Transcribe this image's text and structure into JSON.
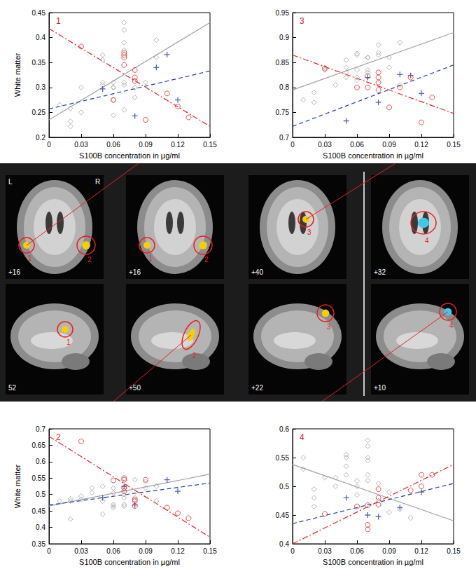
{
  "chart_data": [
    {
      "type": "scatter",
      "title": "1",
      "ylabel": "White matter",
      "xlabel": "S100B concentration in µg/ml",
      "xlim": [
        0,
        0.15
      ],
      "xticks": [
        0,
        0.03,
        0.06,
        0.09,
        0.12,
        0.15
      ],
      "ylim": [
        0.2,
        0.45
      ],
      "yticks": [
        0.2,
        0.25,
        0.3,
        0.35,
        0.4,
        0.45
      ],
      "series": [
        {
          "color": "#a0a0a0",
          "marker": "diamond",
          "line_style": "solid",
          "x": [
            0.01,
            0.02,
            0.02,
            0.02,
            0.03,
            0.03,
            0.05,
            0.05,
            0.05,
            0.05,
            0.06,
            0.06,
            0.06,
            0.06,
            0.06,
            0.07,
            0.07,
            0.07,
            0.07,
            0.07,
            0.07,
            0.07,
            0.08,
            0.08,
            0.09,
            0.1,
            0.1
          ],
          "values": [
            0.265,
            0.222,
            0.232,
            0.258,
            0.3,
            0.25,
            0.31,
            0.305,
            0.355,
            0.365,
            0.3,
            0.31,
            0.3,
            0.275,
            0.244,
            0.43,
            0.415,
            0.39,
            0.375,
            0.31,
            0.305,
            0.255,
            0.3,
            0.28,
            0.31,
            0.36,
            0.395
          ],
          "line_x": [
            0,
            0.15
          ],
          "line_values": [
            0.235,
            0.43
          ]
        },
        {
          "color": "#1f3ca8",
          "marker": "plus",
          "line_style": "dashed",
          "x": [
            0.05,
            0.08,
            0.1,
            0.11,
            0.12
          ],
          "values": [
            0.297,
            0.243,
            0.34,
            0.366,
            0.275
          ],
          "line_x": [
            0,
            0.15
          ],
          "line_values": [
            0.257,
            0.333
          ]
        },
        {
          "color": "#e8201f",
          "marker": "circle",
          "line_style": "dashdot",
          "x": [
            0.03,
            0.06,
            0.07,
            0.07,
            0.07,
            0.07,
            0.08,
            0.08,
            0.08,
            0.09,
            0.11,
            0.12,
            0.13
          ],
          "values": [
            0.382,
            0.275,
            0.37,
            0.365,
            0.36,
            0.345,
            0.335,
            0.32,
            0.313,
            0.235,
            0.288,
            0.262,
            0.24
          ],
          "line_x": [
            0,
            0.15
          ],
          "line_values": [
            0.418,
            0.222
          ]
        }
      ]
    },
    {
      "type": "scatter",
      "title": "3",
      "xlabel": "S100B concentration in µg/ml",
      "xlim": [
        0,
        0.15
      ],
      "xticks": [
        0,
        0.03,
        0.06,
        0.09,
        0.12,
        0.15
      ],
      "ylim": [
        0.7,
        0.95
      ],
      "yticks": [
        0.7,
        0.75,
        0.8,
        0.85,
        0.9,
        0.95
      ],
      "series": [
        {
          "color": "#a0a0a0",
          "marker": "diamond",
          "line_style": "solid",
          "x": [
            0.01,
            0.02,
            0.02,
            0.03,
            0.03,
            0.04,
            0.05,
            0.05,
            0.05,
            0.05,
            0.06,
            0.06,
            0.06,
            0.06,
            0.06,
            0.07,
            0.07,
            0.07,
            0.07,
            0.08,
            0.08,
            0.08,
            0.09,
            0.09,
            0.1,
            0.1
          ],
          "values": [
            0.775,
            0.79,
            0.77,
            0.84,
            0.835,
            0.805,
            0.84,
            0.83,
            0.82,
            0.855,
            0.865,
            0.868,
            0.82,
            0.835,
            0.815,
            0.835,
            0.86,
            0.86,
            0.83,
            0.87,
            0.865,
            0.885,
            0.86,
            0.84,
            0.89,
            0.805
          ],
          "line_x": [
            0,
            0.15
          ],
          "line_values": [
            0.795,
            0.91
          ]
        },
        {
          "color": "#1f3ca8",
          "marker": "plus",
          "line_style": "dashed",
          "x": [
            0.05,
            0.07,
            0.08,
            0.1,
            0.11,
            0.12
          ],
          "values": [
            0.733,
            0.82,
            0.77,
            0.826,
            0.824,
            0.788
          ],
          "line_x": [
            0,
            0.15
          ],
          "line_values": [
            0.722,
            0.845
          ]
        },
        {
          "color": "#e8201f",
          "marker": "circle",
          "line_style": "dashdot",
          "x": [
            0.03,
            0.06,
            0.07,
            0.07,
            0.08,
            0.08,
            0.08,
            0.08,
            0.09,
            0.1,
            0.11,
            0.12,
            0.13
          ],
          "values": [
            0.838,
            0.8,
            0.8,
            0.823,
            0.83,
            0.82,
            0.81,
            0.795,
            0.76,
            0.8,
            0.82,
            0.73,
            0.78
          ],
          "line_x": [
            0,
            0.15
          ],
          "line_values": [
            0.865,
            0.748
          ]
        }
      ]
    },
    {
      "type": "scatter",
      "title": "2",
      "ylabel": "White matter",
      "xlabel": "S100B concentration in µg/ml",
      "xlim": [
        0,
        0.15
      ],
      "xticks": [
        0,
        0.03,
        0.06,
        0.09,
        0.12,
        0.15
      ],
      "ylim": [
        0.35,
        0.7
      ],
      "yticks": [
        0.35,
        0.4,
        0.45,
        0.5,
        0.55,
        0.6,
        0.65,
        0.7
      ],
      "series": [
        {
          "color": "#a0a0a0",
          "marker": "diamond",
          "line_style": "solid",
          "x": [
            0.01,
            0.02,
            0.02,
            0.02,
            0.03,
            0.03,
            0.04,
            0.04,
            0.05,
            0.05,
            0.05,
            0.06,
            0.06,
            0.06,
            0.06,
            0.06,
            0.07,
            0.07,
            0.07,
            0.07,
            0.07,
            0.08,
            0.08,
            0.09,
            0.09,
            0.1,
            0.1
          ],
          "values": [
            0.48,
            0.425,
            0.487,
            0.48,
            0.495,
            0.485,
            0.52,
            0.505,
            0.525,
            0.48,
            0.44,
            0.52,
            0.505,
            0.47,
            0.465,
            0.46,
            0.52,
            0.5,
            0.49,
            0.47,
            0.465,
            0.49,
            0.545,
            0.54,
            0.52,
            0.525,
            0.48
          ],
          "line_x": [
            0,
            0.15
          ],
          "line_values": [
            0.465,
            0.562
          ]
        },
        {
          "color": "#1f3ca8",
          "marker": "plus",
          "line_style": "dashed",
          "x": [
            0.05,
            0.07,
            0.08,
            0.11,
            0.12
          ],
          "values": [
            0.49,
            0.525,
            0.468,
            0.545,
            0.51
          ],
          "line_x": [
            0,
            0.15
          ],
          "line_values": [
            0.468,
            0.535
          ]
        },
        {
          "color": "#e8201f",
          "marker": "circle",
          "line_style": "dashdot",
          "x": [
            0.03,
            0.06,
            0.07,
            0.07,
            0.07,
            0.07,
            0.08,
            0.08,
            0.08,
            0.09,
            0.11,
            0.12,
            0.13
          ],
          "values": [
            0.662,
            0.543,
            0.55,
            0.545,
            0.52,
            0.51,
            0.485,
            0.48,
            0.465,
            0.545,
            0.46,
            0.443,
            0.428
          ],
          "line_x": [
            0,
            0.15
          ],
          "line_values": [
            0.677,
            0.37
          ]
        }
      ]
    },
    {
      "type": "scatter",
      "title": "4",
      "xlabel": "S100B concentration in µg/ml",
      "xlim": [
        0,
        0.15
      ],
      "xticks": [
        0,
        0.03,
        0.06,
        0.09,
        0.12,
        0.15
      ],
      "ylim": [
        0.4,
        0.6
      ],
      "yticks": [
        0.4,
        0.45,
        0.5,
        0.55,
        0.6
      ],
      "series": [
        {
          "color": "#a0a0a0",
          "marker": "diamond",
          "line_style": "solid",
          "x": [
            0.01,
            0.01,
            0.02,
            0.02,
            0.02,
            0.03,
            0.04,
            0.04,
            0.05,
            0.05,
            0.05,
            0.05,
            0.06,
            0.06,
            0.06,
            0.07,
            0.07,
            0.07,
            0.07,
            0.07,
            0.07,
            0.08,
            0.08,
            0.09,
            0.09,
            0.1,
            0.11
          ],
          "values": [
            0.55,
            0.53,
            0.48,
            0.465,
            0.495,
            0.515,
            0.515,
            0.5,
            0.555,
            0.55,
            0.535,
            0.52,
            0.51,
            0.5,
            0.485,
            0.58,
            0.57,
            0.55,
            0.545,
            0.52,
            0.51,
            0.505,
            0.475,
            0.49,
            0.455,
            0.46,
            0.445
          ],
          "line_x": [
            0,
            0.15
          ],
          "line_values": [
            0.538,
            0.44
          ]
        },
        {
          "color": "#1f3ca8",
          "marker": "plus",
          "line_style": "dashed",
          "x": [
            0.05,
            0.07,
            0.08,
            0.1,
            0.12
          ],
          "values": [
            0.48,
            0.45,
            0.447,
            0.463,
            0.49
          ],
          "line_x": [
            0,
            0.15
          ],
          "line_values": [
            0.435,
            0.505
          ]
        },
        {
          "color": "#e8201f",
          "marker": "circle",
          "line_style": "dashdot",
          "x": [
            0.03,
            0.06,
            0.07,
            0.07,
            0.07,
            0.08,
            0.08,
            0.08,
            0.11,
            0.12,
            0.12,
            0.13
          ],
          "values": [
            0.452,
            0.465,
            0.467,
            0.433,
            0.425,
            0.495,
            0.48,
            0.468,
            0.493,
            0.52,
            0.5,
            0.52
          ],
          "line_x": [
            0,
            0.15
          ],
          "line_values": [
            0.4,
            0.538
          ]
        }
      ]
    }
  ],
  "brain_panel": {
    "hemisphere_labels": [
      "L",
      "R"
    ],
    "axial": [
      {
        "slice": "+16",
        "regions": [
          "1",
          "2"
        ]
      },
      {
        "slice": "+16",
        "regions": [
          "1",
          "2"
        ]
      },
      {
        "slice": "+40",
        "regions": [
          "3"
        ]
      },
      {
        "slice": "+32",
        "regions": [
          "4"
        ]
      }
    ],
    "sagittal": [
      {
        "slice": "52",
        "regions": [
          "1"
        ]
      },
      {
        "slice": "+50",
        "regions": [
          "2"
        ]
      },
      {
        "slice": "+22",
        "regions": [
          "3"
        ]
      },
      {
        "slice": "+10",
        "regions": [
          "4"
        ]
      }
    ],
    "region_colors": {
      "1": "#f5d000",
      "2": "#f5d000",
      "3": "#f5d000",
      "4": "#40c8e8"
    }
  }
}
